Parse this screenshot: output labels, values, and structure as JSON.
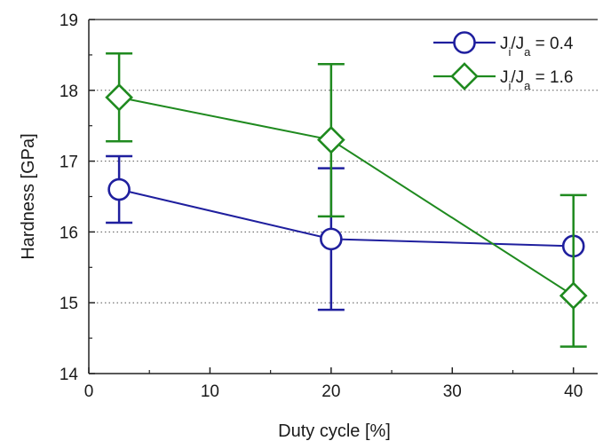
{
  "chart_data": {
    "type": "line",
    "title": "",
    "xlabel": "Duty cycle [%]",
    "ylabel": "Hardness [GPa]",
    "xlim": [
      0,
      42
    ],
    "ylim": [
      14,
      19
    ],
    "x_ticks": [
      0,
      10,
      20,
      30,
      40
    ],
    "y_ticks": [
      14,
      15,
      16,
      17,
      18,
      19
    ],
    "grid": "horizontal-dotted",
    "legend_position": "top-right",
    "series": [
      {
        "name": "0.4",
        "legend_text": "Ji/Ja = 0.4",
        "color": "#1f1f9e",
        "marker": "circle",
        "x": [
          2.5,
          20,
          40
        ],
        "y": [
          16.6,
          15.9,
          15.8
        ],
        "err_low": [
          16.13,
          14.9,
          15.8
        ],
        "err_high": [
          17.07,
          16.9,
          15.8
        ]
      },
      {
        "name": "1.6",
        "legend_text": "Ji/Ja = 1.6",
        "color": "#1f8a1f",
        "marker": "diamond",
        "x": [
          2.5,
          20,
          40
        ],
        "y": [
          17.9,
          17.3,
          15.1
        ],
        "err_low": [
          17.28,
          16.22,
          14.38
        ],
        "err_high": [
          18.52,
          18.37,
          16.52
        ]
      }
    ]
  }
}
